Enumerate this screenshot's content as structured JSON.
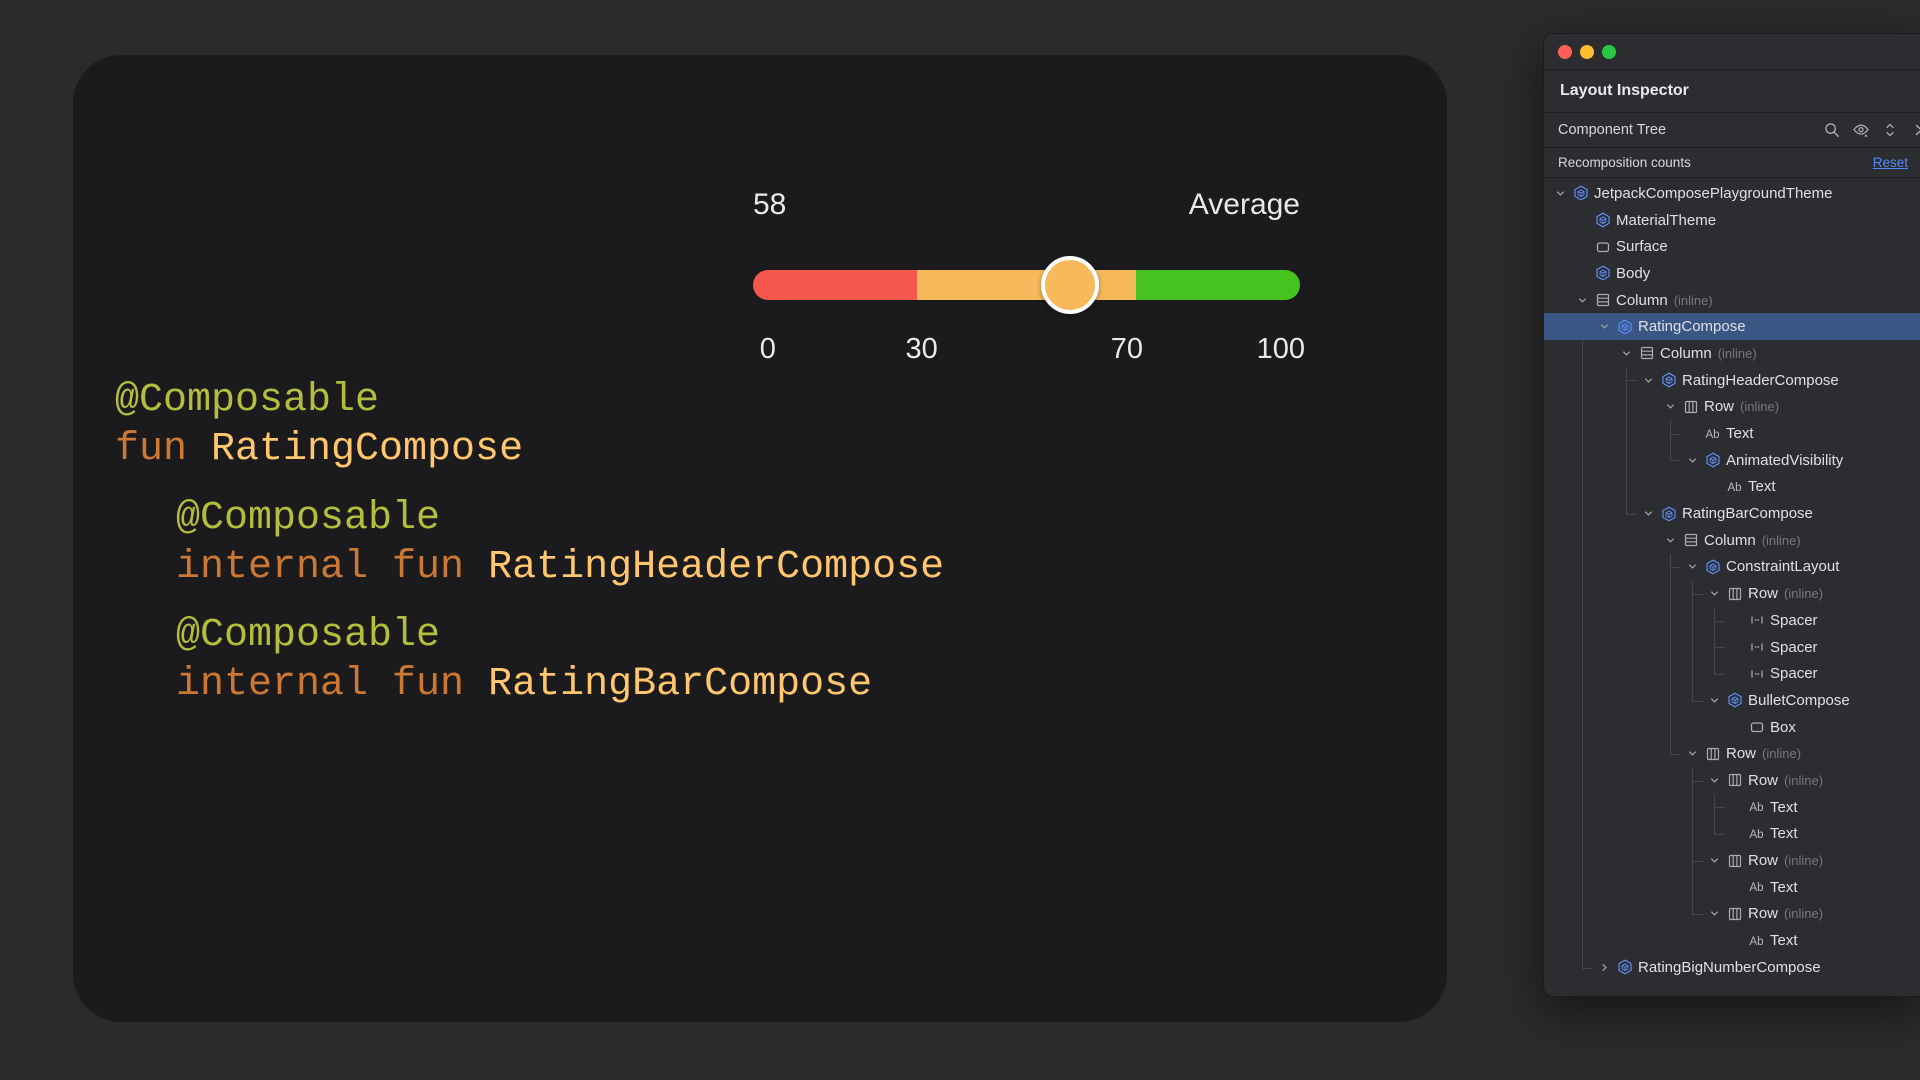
{
  "colors": {
    "page_bg": "#2B2B2C",
    "card_bg": "#1B1B1E",
    "panel_bg": "#2B2D30",
    "selection": "#3A5684",
    "reset_link": "#548AF7",
    "compose_icon": "#5D8DF5",
    "tree_icon_gray": "#A9ACB2"
  },
  "card": {
    "slider": {
      "value_label": "58",
      "category_label": "Average",
      "min": 0,
      "max": 100,
      "value": 58,
      "segments": [
        {
          "from": 0,
          "to": 30,
          "color": "#F6574D"
        },
        {
          "from": 30,
          "to": 70,
          "color": "#F8B95D"
        },
        {
          "from": 70,
          "to": 100,
          "color": "#47C320"
        }
      ],
      "thumb_color": "#F8B95D",
      "ticks": [
        {
          "value": 0,
          "label": "0"
        },
        {
          "value": 30,
          "label": "30"
        },
        {
          "value": 70,
          "label": "70"
        },
        {
          "value": 100,
          "label": "100"
        }
      ]
    },
    "code": {
      "colors": {
        "annotation": "#B3BE3C",
        "keyword": "#CC7832",
        "function": "#FFC66D"
      },
      "blocks": [
        {
          "lines": [
            [
              {
                "text": "@Composable",
                "style": "annotation"
              }
            ],
            [
              {
                "text": "fun ",
                "style": "keyword"
              },
              {
                "text": "RatingCompose",
                "style": "function"
              }
            ]
          ]
        },
        {
          "lines": [
            [
              {
                "text": "@Composable",
                "style": "annotation"
              }
            ],
            [
              {
                "text": "internal fun ",
                "style": "keyword"
              },
              {
                "text": "RatingHeaderCompose",
                "style": "function"
              }
            ]
          ]
        },
        {
          "lines": [
            [
              {
                "text": "@Composable",
                "style": "annotation"
              }
            ],
            [
              {
                "text": "internal fun ",
                "style": "keyword"
              },
              {
                "text": "RatingBarCompose",
                "style": "function"
              }
            ]
          ]
        }
      ]
    }
  },
  "panel": {
    "title": "Layout Inspector",
    "traffic_lights": [
      {
        "name": "close-button",
        "color": "#FF5F57"
      },
      {
        "name": "minimize-button",
        "color": "#FEBC2E"
      },
      {
        "name": "zoom-button",
        "color": "#28C840"
      }
    ],
    "toolbar": {
      "label": "Component Tree",
      "icons": [
        "search-icon",
        "visibility-icon",
        "expand-collapse-icon",
        "chevron-right-icon"
      ]
    },
    "recomposition": {
      "label": "Recomposition counts",
      "reset_label": "Reset"
    },
    "tree": [
      {
        "label": "JetpackComposePlaygroundTheme",
        "qualifier": "",
        "icon": "compose",
        "depth": 0,
        "chevron": "expanded",
        "selected": false
      },
      {
        "label": "MaterialTheme",
        "qualifier": "",
        "icon": "compose",
        "depth": 1,
        "chevron": "none",
        "selected": false
      },
      {
        "label": "Surface",
        "qualifier": "",
        "icon": "box",
        "depth": 1,
        "chevron": "none",
        "selected": false
      },
      {
        "label": "Body",
        "qualifier": "",
        "icon": "compose",
        "depth": 1,
        "chevron": "none",
        "selected": false
      },
      {
        "label": "Column",
        "qualifier": "(inline)",
        "icon": "column",
        "depth": 1,
        "chevron": "expanded",
        "selected": false
      },
      {
        "label": "RatingCompose",
        "qualifier": "",
        "icon": "compose",
        "depth": 2,
        "chevron": "expanded",
        "selected": true
      },
      {
        "label": "Column",
        "qualifier": "(inline)",
        "icon": "column",
        "depth": 3,
        "chevron": "expanded",
        "selected": false
      },
      {
        "label": "RatingHeaderCompose",
        "qualifier": "",
        "icon": "compose",
        "depth": 4,
        "chevron": "expanded",
        "selected": false
      },
      {
        "label": "Row",
        "qualifier": "(inline)",
        "icon": "row",
        "depth": 5,
        "chevron": "expanded",
        "selected": false
      },
      {
        "label": "Text",
        "qualifier": "",
        "icon": "text",
        "depth": 6,
        "chevron": "none",
        "selected": false
      },
      {
        "label": "AnimatedVisibility",
        "qualifier": "",
        "icon": "compose",
        "depth": 6,
        "chevron": "expanded",
        "selected": false
      },
      {
        "label": "Text",
        "qualifier": "",
        "icon": "text",
        "depth": 7,
        "chevron": "none",
        "selected": false
      },
      {
        "label": "RatingBarCompose",
        "qualifier": "",
        "icon": "compose",
        "depth": 4,
        "chevron": "expanded",
        "selected": false
      },
      {
        "label": "Column",
        "qualifier": "(inline)",
        "icon": "column",
        "depth": 5,
        "chevron": "expanded",
        "selected": false
      },
      {
        "label": "ConstraintLayout",
        "qualifier": "",
        "icon": "compose",
        "depth": 6,
        "chevron": "expanded",
        "selected": false
      },
      {
        "label": "Row",
        "qualifier": "(inline)",
        "icon": "row",
        "depth": 7,
        "chevron": "expanded",
        "selected": false
      },
      {
        "label": "Spacer",
        "qualifier": "",
        "icon": "spacer",
        "depth": 8,
        "chevron": "none",
        "selected": false
      },
      {
        "label": "Spacer",
        "qualifier": "",
        "icon": "spacer",
        "depth": 8,
        "chevron": "none",
        "selected": false
      },
      {
        "label": "Spacer",
        "qualifier": "",
        "icon": "spacer",
        "depth": 8,
        "chevron": "none",
        "selected": false
      },
      {
        "label": "BulletCompose",
        "qualifier": "",
        "icon": "compose",
        "depth": 7,
        "chevron": "expanded",
        "selected": false
      },
      {
        "label": "Box",
        "qualifier": "",
        "icon": "box",
        "depth": 8,
        "chevron": "none",
        "selected": false
      },
      {
        "label": "Row",
        "qualifier": "(inline)",
        "icon": "row",
        "depth": 6,
        "chevron": "expanded",
        "selected": false
      },
      {
        "label": "Row",
        "qualifier": "(inline)",
        "icon": "row",
        "depth": 7,
        "chevron": "expanded",
        "selected": false
      },
      {
        "label": "Text",
        "qualifier": "",
        "icon": "text",
        "depth": 8,
        "chevron": "none",
        "selected": false
      },
      {
        "label": "Text",
        "qualifier": "",
        "icon": "text",
        "depth": 8,
        "chevron": "none",
        "selected": false
      },
      {
        "label": "Row",
        "qualifier": "(inline)",
        "icon": "row",
        "depth": 7,
        "chevron": "expanded",
        "selected": false
      },
      {
        "label": "Text",
        "qualifier": "",
        "icon": "text",
        "depth": 8,
        "chevron": "none",
        "selected": false
      },
      {
        "label": "Row",
        "qualifier": "(inline)",
        "icon": "row",
        "depth": 7,
        "chevron": "expanded",
        "selected": false
      },
      {
        "label": "Text",
        "qualifier": "",
        "icon": "text",
        "depth": 8,
        "chevron": "none",
        "selected": false
      },
      {
        "label": "RatingBigNumberCompose",
        "qualifier": "",
        "icon": "compose",
        "depth": 2,
        "chevron": "collapsed",
        "selected": false
      }
    ]
  }
}
